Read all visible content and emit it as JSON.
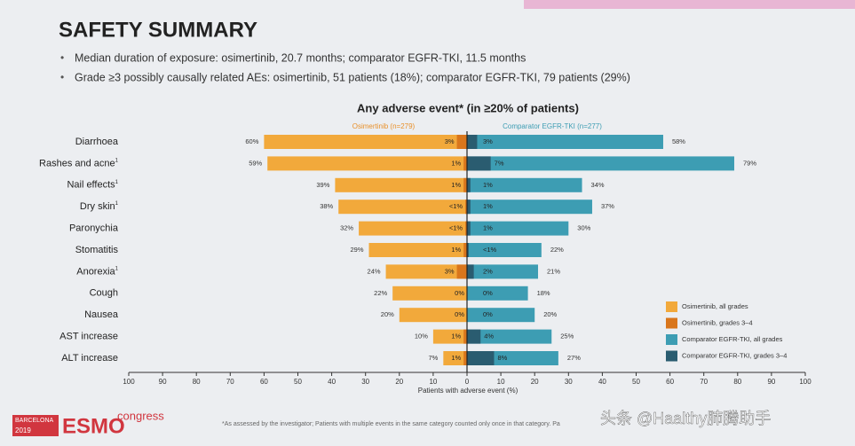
{
  "header": {
    "title": "SAFETY SUMMARY",
    "bullets": [
      "Median duration of exposure: osimertinib, 20.7 months; comparator EGFR-TKI, 11.5 months",
      "Grade ≥3 possibly causally related AEs: osimertinib, 51 patients (18%); comparator EGFR-TKI, 79 patients (29%)"
    ]
  },
  "chart_data": {
    "type": "butterfly",
    "title": "Any adverse event* (in ≥20% of patients)",
    "left_label": "Osimertinib (n=279)",
    "right_label": "Comparator EGFR-TKI (n=277)",
    "x_label": "Patients with adverse event (%)",
    "categories": [
      "Diarrhoea",
      "Rashes and acne",
      "Nail effects",
      "Dry skin",
      "Paronychia",
      "Stomatitis",
      "Anorexia",
      "Cough",
      "Nausea",
      "AST increase",
      "ALT increase"
    ],
    "category_marks": [
      null,
      "1",
      "1",
      "1",
      null,
      null,
      "1",
      null,
      null,
      null,
      null
    ],
    "xlim": [
      -100,
      100
    ],
    "xticks": [
      {
        "value": -100,
        "label": "100"
      },
      {
        "value": -90,
        "label": "90"
      },
      {
        "value": -80,
        "label": "80"
      },
      {
        "value": -70,
        "label": "70"
      },
      {
        "value": -60,
        "label": "60"
      },
      {
        "value": -50,
        "label": "50"
      },
      {
        "value": -40,
        "label": "40"
      },
      {
        "value": -30,
        "label": "30"
      },
      {
        "value": -20,
        "label": "20"
      },
      {
        "value": -10,
        "label": "10"
      },
      0,
      10,
      20,
      30,
      40,
      50,
      60,
      70,
      80,
      90,
      100
    ],
    "series": [
      {
        "name": "Osimertinib, all grades",
        "color": "#f2a93b",
        "side": "left",
        "values": [
          60,
          59,
          39,
          38,
          32,
          29,
          24,
          22,
          20,
          10,
          7
        ],
        "value_labels": [
          "60%",
          "59%",
          "39%",
          "38%",
          "32%",
          "29%",
          "24%",
          "22%",
          "20%",
          "10%",
          "7%"
        ]
      },
      {
        "name": "Osimertinib, grades 3–4",
        "color": "#d9761c",
        "side": "left",
        "values": [
          3,
          1,
          1,
          0.5,
          0.5,
          1,
          3,
          0,
          0,
          1,
          1
        ],
        "value_labels": [
          "3%",
          "1%",
          "1%",
          "<1%",
          "<1%",
          "1%",
          "3%",
          "0%",
          "0%",
          "1%",
          "1%"
        ]
      },
      {
        "name": "Comparator EGFR-TKI, all grades",
        "color": "#3d9db3",
        "side": "right",
        "values": [
          58,
          79,
          34,
          37,
          30,
          22,
          21,
          18,
          20,
          25,
          27
        ],
        "value_labels": [
          "58%",
          "79%",
          "34%",
          "37%",
          "30%",
          "22%",
          "21%",
          "18%",
          "20%",
          "25%",
          "27%"
        ]
      },
      {
        "name": "Comparator EGFR-TKI, grades 3–4",
        "color": "#2a5c70",
        "side": "right",
        "values": [
          3,
          7,
          1,
          1,
          1,
          0.5,
          2,
          0,
          0,
          4,
          8
        ],
        "value_labels": [
          "3%",
          "7%",
          "1%",
          "1%",
          "1%",
          "<1%",
          "2%",
          "0%",
          "0%",
          "4%",
          "8%"
        ]
      }
    ]
  },
  "footer": {
    "footnote": "*As assessed by the investigator; Patients with multiple events in the same category counted only once in that category. Pa",
    "logo_city": "BARCELONA",
    "logo_year": "2019",
    "logo_brand": "ESMO",
    "logo_word": "congress",
    "watermark": "头条 @Haalthy肺腾助手"
  }
}
